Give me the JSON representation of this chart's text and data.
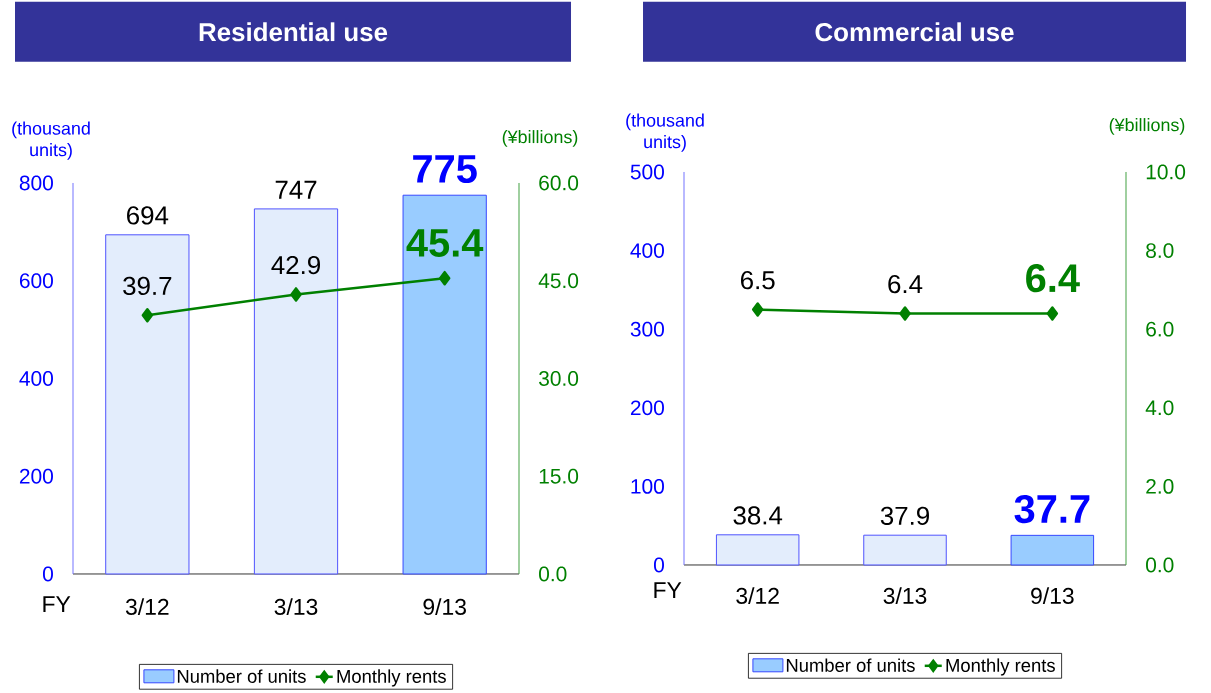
{
  "chart_data": [
    {
      "type": "bar",
      "title": "Residential use",
      "xlabel": "FY",
      "ylabel": "(thousand units)",
      "y2label": "(¥billions)",
      "categories": [
        "3/12",
        "3/13",
        "9/13"
      ],
      "series": [
        {
          "name": "Number of units",
          "color": "#99ccff",
          "colors": [
            "#e3edfc",
            "#e3edfc",
            "#99ccff"
          ],
          "values": [
            694,
            747,
            775
          ]
        },
        {
          "name": "Monthly rents",
          "type": "line",
          "axis": "y2",
          "color": "#008000",
          "values": [
            39.7,
            42.9,
            45.4
          ]
        }
      ],
      "ylim": [
        0,
        800
      ],
      "yticks": [
        0,
        200,
        400,
        600,
        800
      ],
      "y2lim": [
        0,
        60
      ],
      "y2ticks": [
        {
          "value": 0,
          "label": "0.0"
        },
        {
          "value": 15,
          "label": "15.0"
        },
        {
          "value": 30,
          "label": "30.0"
        },
        {
          "value": 45,
          "label": "45.0"
        },
        {
          "value": 60,
          "label": "60.0"
        }
      ],
      "marker": "diamond",
      "data_labels": true,
      "legend": "bottom"
    },
    {
      "type": "bar",
      "title": "Commercial use",
      "xlabel": "FY",
      "ylabel": "(thousand units)",
      "y2label": "(¥billions)",
      "categories": [
        "3/12",
        "3/13",
        "9/13"
      ],
      "series": [
        {
          "name": "Number of units",
          "color": "#99ccff",
          "colors": [
            "#e3edfc",
            "#e3edfc",
            "#99ccff"
          ],
          "values": [
            38.4,
            37.9,
            37.7
          ]
        },
        {
          "name": "Monthly rents",
          "type": "line",
          "axis": "y2",
          "color": "#008000",
          "values": [
            6.5,
            6.4,
            6.4
          ]
        }
      ],
      "ylim": [
        0,
        500
      ],
      "yticks": [
        0,
        100,
        200,
        300,
        400,
        500
      ],
      "y2lim": [
        0,
        10
      ],
      "y2ticks": [
        {
          "value": 0,
          "label": "0.0"
        },
        {
          "value": 2,
          "label": "2.0"
        },
        {
          "value": 4,
          "label": "4.0"
        },
        {
          "value": 6,
          "label": "6.0"
        },
        {
          "value": 8,
          "label": "8.0"
        },
        {
          "value": 10,
          "label": "10.0"
        }
      ],
      "marker": "diamond",
      "data_labels": true,
      "legend": "bottom"
    }
  ]
}
